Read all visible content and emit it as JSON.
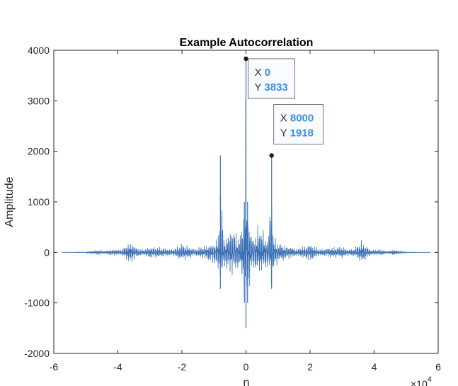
{
  "chart_data": {
    "type": "line",
    "title": "Example Autocorrelation",
    "xlabel": "n",
    "ylabel": "Amplitude",
    "x_exponent_label": "×10",
    "x_exponent_power": "4",
    "xlim": [
      -6,
      6
    ],
    "ylim": [
      -2000,
      4000
    ],
    "x_ticks": [
      -6,
      -4,
      -2,
      0,
      2,
      4,
      6
    ],
    "x_tick_labels": [
      "-6",
      "-4",
      "-2",
      "0",
      "2",
      "4",
      "6"
    ],
    "y_ticks": [
      -2000,
      -1000,
      0,
      1000,
      2000,
      3000,
      4000
    ],
    "y_tick_labels": [
      "-2000",
      "-1000",
      "0",
      "1000",
      "2000",
      "3000",
      "4000"
    ],
    "x_range_data": [
      -5.76,
      5.76
    ],
    "series": [
      {
        "color": "#3f73b8",
        "x": [
          -5.76,
          -5.0,
          -4.6,
          -4.4,
          -4.2,
          -3.9,
          -3.6,
          -3.4,
          -3.2,
          -3.0,
          -2.6,
          -2.3,
          -2.0,
          -1.6,
          -1.3,
          -1.0,
          -0.85,
          -0.8,
          -0.7,
          -0.4,
          -0.2,
          -0.05,
          0,
          0.05,
          0.2,
          0.4,
          0.7,
          0.8,
          0.85,
          1.0,
          1.3,
          1.6,
          2.0,
          2.3,
          2.6,
          3.0,
          3.2,
          3.4,
          3.6,
          3.9,
          4.2,
          4.4,
          4.6,
          5.0,
          5.76
        ],
        "y": [
          0,
          10,
          60,
          30,
          70,
          60,
          250,
          100,
          70,
          130,
          110,
          70,
          200,
          80,
          150,
          200,
          400,
          1918,
          300,
          600,
          300,
          1000,
          3833,
          1000,
          300,
          600,
          300,
          1918,
          400,
          200,
          150,
          80,
          200,
          70,
          110,
          130,
          70,
          100,
          250,
          60,
          70,
          30,
          60,
          10,
          0
        ],
        "envelope_neg": [
          0,
          -10,
          -60,
          -30,
          -70,
          -60,
          -250,
          -100,
          -70,
          -130,
          -110,
          -70,
          -200,
          -80,
          -150,
          -250,
          -450,
          -720,
          -350,
          -500,
          -350,
          -1000,
          -1500,
          -1000,
          -350,
          -500,
          -350,
          -720,
          -450,
          -250,
          -150,
          -80,
          -200,
          -70,
          -110,
          -130,
          -70,
          -100,
          -250,
          -60,
          -70,
          -30,
          -60,
          -10,
          0
        ]
      }
    ],
    "datatips": [
      {
        "x_key": "X",
        "x_value": "0",
        "y_key": "Y",
        "y_value": "3833",
        "x": 0,
        "y": 3833
      },
      {
        "x_key": "X",
        "x_value": "8000",
        "y_key": "Y",
        "y_value": "1918",
        "x": 0.8,
        "y": 1918
      }
    ]
  }
}
